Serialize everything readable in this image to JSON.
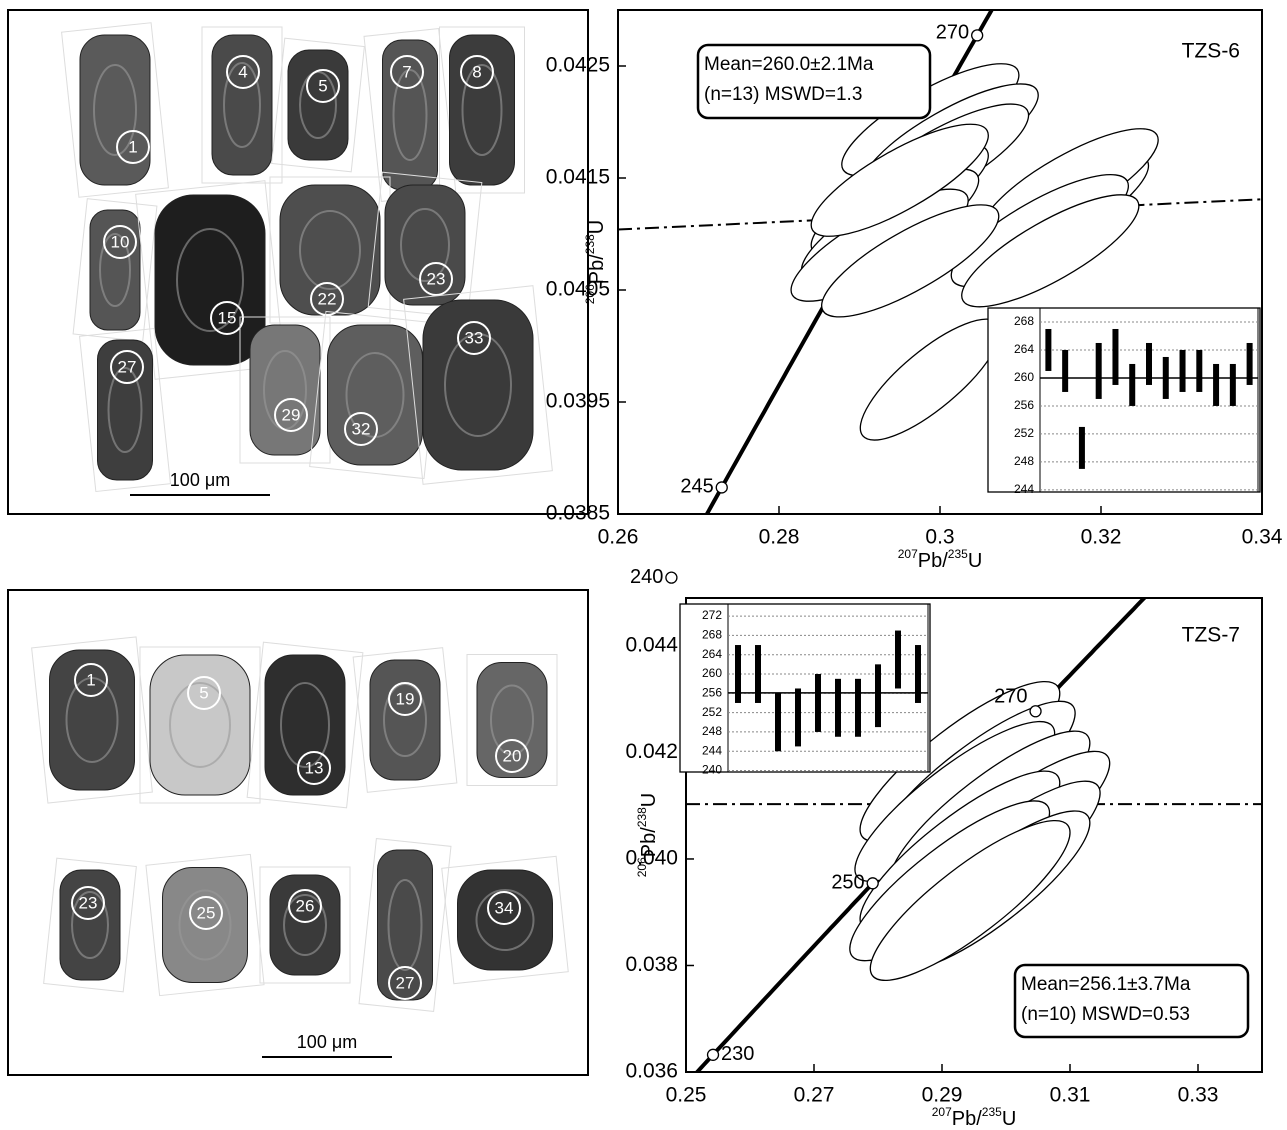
{
  "images": [
    {
      "grain_labels": [
        "1",
        "4",
        "5",
        "7",
        "8",
        "10",
        "15",
        "22",
        "23",
        "27",
        "29",
        "32",
        "33"
      ],
      "scale_label": "100 μm"
    },
    {
      "grain_labels": [
        "1",
        "5",
        "13",
        "19",
        "20",
        "23",
        "25",
        "26",
        "27",
        "34"
      ],
      "scale_label": "100 μm"
    }
  ],
  "chart_data": [
    {
      "type": "concordia",
      "sample": "TZS-6",
      "box_lines": [
        "Mean=260.0±2.1Ma",
        "(n=13) MSWD=1.3"
      ],
      "xlabel_parts": [
        "207",
        "Pb/",
        "235",
        "U"
      ],
      "ylabel_parts": [
        "206",
        "Pb/",
        "238",
        "U"
      ],
      "xlim": [
        0.26,
        0.34
      ],
      "ylim": [
        0.0385,
        0.043
      ],
      "xticks": [
        0.26,
        0.28,
        0.3,
        0.32,
        0.34
      ],
      "yticks": [
        0.0385,
        0.0395,
        0.0405,
        0.0415,
        0.0425
      ],
      "concordia_ticks": [
        240,
        245,
        270
      ],
      "x": [
        0.2988,
        0.3012,
        0.3,
        0.295,
        0.2938,
        0.2925,
        0.295,
        0.3149,
        0.3161,
        0.3124,
        0.3137,
        0.2988,
        0.2963
      ],
      "y": [
        0.04202,
        0.04184,
        0.04166,
        0.0413,
        0.04108,
        0.0409,
        0.04148,
        0.04121,
        0.04144,
        0.04103,
        0.04085,
        0.0397,
        0.04076
      ],
      "x_err": [
        0.011,
        0.011,
        0.011,
        0.011,
        0.011,
        0.011,
        0.011,
        0.011,
        0.011,
        0.011,
        0.011,
        0.0087,
        0.011
      ],
      "y_err": [
        0.0005,
        0.0005,
        0.0005,
        0.0005,
        0.0005,
        0.0005,
        0.0005,
        0.0005,
        0.0005,
        0.0005,
        0.0005,
        0.00054,
        0.0005
      ],
      "ellipse_rho": 0.8,
      "reference_line": {
        "x": [
          0.26,
          0.34
        ],
        "y": [
          0.04104,
          0.04131
        ]
      },
      "inset": {
        "values": [
          264,
          261,
          250,
          261,
          263,
          259,
          262,
          260,
          261,
          261,
          259,
          259,
          262
        ],
        "errors": [
          3,
          3,
          3,
          4,
          4,
          3,
          3,
          3,
          3,
          3,
          3,
          3,
          3
        ],
        "mean": 260.0,
        "ylim": [
          243.7,
          270
        ],
        "yticks": [
          244,
          248,
          252,
          256,
          260,
          264,
          268
        ]
      }
    },
    {
      "type": "concordia",
      "sample": "TZS-7",
      "box_lines": [
        "Mean=256.1±3.7Ma",
        "(n=10) MSWD=0.53"
      ],
      "xlabel_parts": [
        "207",
        "Pb/",
        "235",
        "U"
      ],
      "ylabel_parts": [
        "206",
        "Pb/",
        "238",
        "U"
      ],
      "xlim": [
        0.25,
        0.34
      ],
      "ylim": [
        0.036,
        0.0449
      ],
      "xticks": [
        0.25,
        0.27,
        0.29,
        0.31,
        0.33
      ],
      "yticks": [
        0.036,
        0.038,
        {
          "value": 0.04,
          "label": "0.040"
        },
        0.042,
        0.044
      ],
      "concordia_ticks": [
        230,
        250,
        270
      ],
      "x": [
        0.2928,
        0.2952,
        0.292,
        0.2975,
        0.3006,
        0.2928,
        0.2991,
        0.2912,
        0.2975,
        0.2944
      ],
      "y": [
        0.04183,
        0.04146,
        0.04108,
        0.0409,
        0.04052,
        0.04015,
        0.03996,
        0.03959,
        0.0394,
        0.03922
      ],
      "x_err": [
        0.0156,
        0.0156,
        0.0156,
        0.0156,
        0.0156,
        0.0156,
        0.0156,
        0.0156,
        0.0156,
        0.0156
      ],
      "y_err": [
        0.0015,
        0.0015,
        0.0015,
        0.0015,
        0.0015,
        0.0015,
        0.0015,
        0.0015,
        0.0015,
        0.0015
      ],
      "ellipse_rho": 0.85,
      "reference_line": {
        "x": [
          0.25,
          0.34
        ],
        "y": [
          0.04103,
          0.04103
        ]
      },
      "inset": {
        "values": [
          260,
          260,
          250,
          251,
          254,
          253,
          253,
          255.5,
          263,
          260
        ],
        "errors": [
          6,
          6,
          6,
          6,
          6,
          6,
          6,
          6.5,
          6,
          6
        ],
        "mean": 256.1,
        "ylim": [
          239.7,
          274.5
        ],
        "yticks": [
          240,
          244,
          248,
          252,
          256,
          260,
          264,
          268,
          272
        ]
      }
    }
  ]
}
